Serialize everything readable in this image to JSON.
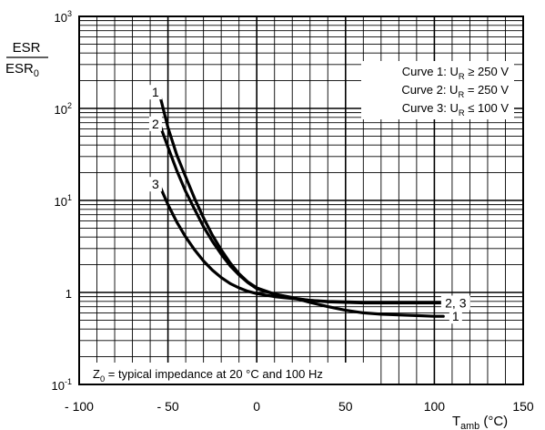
{
  "chart_data": {
    "type": "line",
    "ylabel": {
      "numerator": "ESR",
      "denominator": "ESR",
      "denominator_subscript": "0"
    },
    "xlabel": {
      "main": "T",
      "subscript": "amb",
      "unit": "(°C)"
    },
    "x_ticks": [
      "- 100",
      "- 50",
      "0",
      "50",
      "100",
      "150"
    ],
    "x_tick_values": [
      -100,
      -50,
      0,
      50,
      100,
      150
    ],
    "y_ticks": [
      {
        "value": 0.1,
        "base": "10",
        "exp": "-1"
      },
      {
        "value": 1,
        "base": "1",
        "exp": ""
      },
      {
        "value": 10,
        "base": "10",
        "exp": "1"
      },
      {
        "value": 100,
        "base": "10",
        "exp": "2"
      },
      {
        "value": 1000,
        "base": "10",
        "exp": "3"
      }
    ],
    "xlim": [
      -100,
      150
    ],
    "ylim": [
      0.1,
      1000
    ],
    "y_scale": "log",
    "grid": true,
    "legend_placement": "top-right",
    "legend": [
      {
        "prefix": "Curve 1: U",
        "sub": "R",
        "suffix": " ≥ 250 V"
      },
      {
        "prefix": "Curve 2: U",
        "sub": "R",
        "suffix": " = 250 V"
      },
      {
        "prefix": "Curve 3: U",
        "sub": "R",
        "suffix": " ≤ 100 V"
      }
    ],
    "note": {
      "prefix": "Z",
      "sub": "0",
      "suffix": " = typical impedance at 20 °C and 100 Hz"
    },
    "series": [
      {
        "name": "1",
        "label": "1",
        "x": [
          -55,
          -50,
          -45,
          -40,
          -35,
          -30,
          -25,
          -20,
          -15,
          -10,
          -5,
          0,
          10,
          20,
          30,
          40,
          50,
          60,
          70,
          80,
          90,
          100,
          105
        ],
        "y": [
          150,
          62,
          31,
          18,
          10.5,
          6.5,
          4.2,
          2.9,
          2.1,
          1.6,
          1.3,
          1.12,
          0.96,
          0.88,
          0.78,
          0.7,
          0.64,
          0.6,
          0.58,
          0.57,
          0.56,
          0.55,
          0.55
        ]
      },
      {
        "name": "2",
        "label": "2, 3",
        "x": [
          -55,
          -50,
          -45,
          -40,
          -35,
          -30,
          -25,
          -20,
          -15,
          -10,
          -5,
          0,
          10,
          20,
          30,
          40,
          50,
          60,
          70,
          80,
          90,
          100,
          105
        ],
        "y": [
          70,
          38,
          21,
          12.5,
          8,
          5.2,
          3.6,
          2.6,
          1.95,
          1.55,
          1.28,
          1.1,
          0.96,
          0.87,
          0.82,
          0.79,
          0.78,
          0.77,
          0.77,
          0.77,
          0.77,
          0.77,
          0.77
        ]
      },
      {
        "name": "3",
        "label": "2, 3",
        "x": [
          -55,
          -50,
          -45,
          -40,
          -35,
          -30,
          -25,
          -20,
          -15,
          -10,
          -5,
          0,
          10,
          20,
          30,
          40,
          50,
          60,
          70,
          80,
          90,
          100,
          105
        ],
        "y": [
          15,
          9,
          5.8,
          4,
          2.9,
          2.2,
          1.75,
          1.45,
          1.25,
          1.12,
          1.03,
          0.97,
          0.9,
          0.86,
          0.82,
          0.8,
          0.79,
          0.78,
          0.78,
          0.78,
          0.78,
          0.78,
          0.78
        ]
      }
    ],
    "curve_labels": [
      {
        "text": "1",
        "x": -57,
        "y": 150
      },
      {
        "text": "2",
        "x": -57,
        "y": 68
      },
      {
        "text": "3",
        "x": -57,
        "y": 15
      },
      {
        "text": "2, 3",
        "x": 112,
        "y": 0.77
      },
      {
        "text": "1",
        "x": 112,
        "y": 0.55
      }
    ]
  }
}
